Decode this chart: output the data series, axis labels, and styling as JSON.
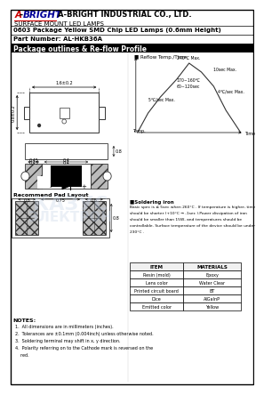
{
  "title_company": "A-BRIGHT INDUSTRIAL CO., LTD.",
  "subtitle": "SURFACE MOUNT LED LAMPS",
  "product_line": "0603 Package Yellow SMD Chip LED Lamps (0.6mm Height)",
  "part_number": "Part Number: AL-HKB36A",
  "section_title": "Package outlines & Re-flow Profile",
  "reflow_title": "Reflow Temp./Time",
  "soldering_title": "■Soldering iron",
  "sol_lines": [
    "Basic spec is ≤ 5sec when 260°C . If temperature is higher, time",
    "should be shorter (+10°C → -1sec ).Power dissipation of iron",
    "should be smaller than 15W, and temperatures should be",
    "controllable. Surface temperature of the device should be under",
    "230°C ."
  ],
  "pad_layout_title": "Recommend Pad Layout",
  "table_header": [
    "ITEM",
    "MATERIALS"
  ],
  "table_items": [
    "Resin (mold)",
    "Lens color",
    "Printed circuit board",
    "Dice",
    "Emitted color"
  ],
  "table_materials": [
    "Epoxy",
    "Water Clear",
    "BT",
    "AlGaInP",
    "Yellow"
  ],
  "notes_title": "NOTES:",
  "notes": [
    "1.  All dimensions are in millimeters (inches).",
    "2.  Tolerances are ±0.1mm (0.004inch) unless otherwise noted.",
    "3.  Soldering terminal may shift in x, y direction.",
    "4.  Polarity referring on to the Cathode mark is reversed on the",
    "    red."
  ],
  "logo_red": "#cc0000",
  "logo_blue": "#000099",
  "section_bg": "#000000",
  "section_text_color": "#ffffff",
  "bg_color": "#ffffff"
}
